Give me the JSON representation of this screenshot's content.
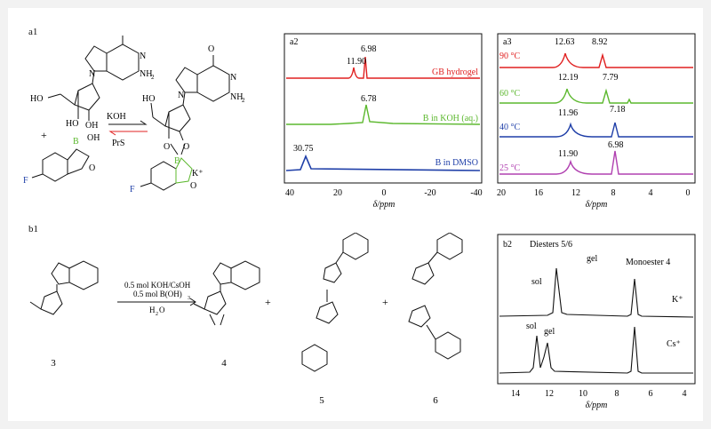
{
  "a1": {
    "label": "a1",
    "reagent_top": "KOH",
    "reagent_bottom": "PrS",
    "plus": "+",
    "counter_ion": "K⁺",
    "atoms": {
      "HO": "HO",
      "OH": "OH",
      "O": "O",
      "N": "N",
      "H": "H",
      "NH2": "NH",
      "sub2": "2",
      "B": "B",
      "F": "F"
    }
  },
  "a2": {
    "label": "a2",
    "xlabel": "δ/ppm",
    "ticks": [
      "40",
      "20",
      "0",
      "-20",
      "-40"
    ],
    "traces": [
      {
        "name": "GB hydrogel",
        "color": "#e02020",
        "peaks": [
          "11.90",
          "6.98"
        ]
      },
      {
        "name": "B in KOH (aq.)",
        "color": "#5cb82e",
        "peaks": [
          "6.78"
        ]
      },
      {
        "name": "B in DMSO",
        "color": "#1f3fa8",
        "peaks": [
          "30.75"
        ]
      }
    ]
  },
  "a3": {
    "label": "a3",
    "xlabel": "δ/ppm",
    "ticks": [
      "20",
      "16",
      "12",
      "8",
      "4",
      "0"
    ],
    "traces": [
      {
        "temp": "90 °C",
        "color": "#e02020",
        "peaks": [
          "12.63",
          "8.92"
        ]
      },
      {
        "temp": "60 °C",
        "color": "#5cb82e",
        "peaks": [
          "12.19",
          "7.79"
        ]
      },
      {
        "temp": "40 °C",
        "color": "#1f3fa8",
        "peaks": [
          "11.96",
          "7.18"
        ]
      },
      {
        "temp": "25 °C",
        "color": "#b040b0",
        "peaks": [
          "11.90",
          "6.98"
        ]
      }
    ]
  },
  "b1": {
    "label": "b1",
    "conditions": [
      "0.5 mol KOH/CsOH",
      "0.5 mol B(OH)",
      "3",
      "H",
      "2",
      "O"
    ],
    "compounds": [
      "3",
      "4",
      "5",
      "6"
    ],
    "plus": "+"
  },
  "b2": {
    "label": "b2",
    "title": "Diesters 5/6",
    "monoester": "Monoester 4",
    "sol": "sol",
    "gel": "gel",
    "ions": [
      "K⁺",
      "Cs⁺"
    ],
    "xlabel": "δ/ppm",
    "ticks": [
      "14",
      "12",
      "10",
      "8",
      "6",
      "4"
    ]
  }
}
